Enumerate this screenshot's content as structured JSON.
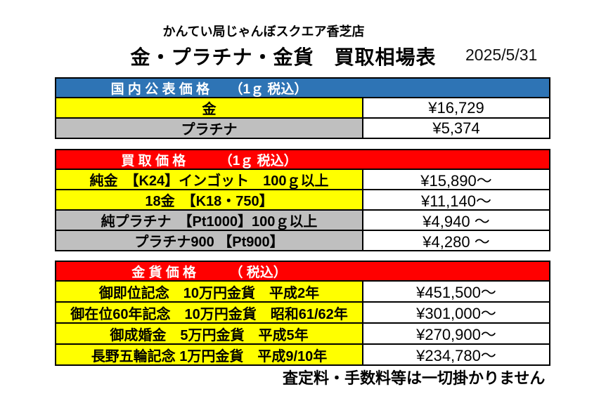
{
  "header": {
    "store_name": "かんてい局じゃんぼスクエア香芝店",
    "title": "金・プラチナ・金貨　買取相場表",
    "date": "2025/5/31"
  },
  "colors": {
    "blue": "#2E74B5",
    "red": "#FF0000",
    "yellow": "#FFFF00",
    "gray": "#BFBFBF",
    "white": "#FFFFFF",
    "border": "#000000"
  },
  "tables": [
    {
      "name": "国内公表価格",
      "header": "国 内 公 表 価 格　　（1ｇ 税込）",
      "header_color": "blue",
      "rows": [
        {
          "label": "金",
          "price": "¥16,729",
          "bg": "yellow"
        },
        {
          "label": "プラチナ",
          "price": "¥5,374",
          "bg": "gray"
        }
      ]
    },
    {
      "name": "買取価格",
      "header": "買 取 価 格　　　（1ｇ 税込）",
      "header_color": "red",
      "rows": [
        {
          "label": "純金　【K24】インゴット　100ｇ以上",
          "price": "¥15,890～",
          "bg": "yellow"
        },
        {
          "label": "18金　【K18・750】",
          "price": "¥11,140～",
          "bg": "yellow"
        },
        {
          "label": "純プラチナ　【Pt1000】100ｇ以上",
          "price": "¥4,940 ～",
          "bg": "gray"
        },
        {
          "label": "プラチナ900 【Pt900】",
          "price": "¥4,280 ～",
          "bg": "gray"
        }
      ]
    },
    {
      "name": "金貨価格",
      "header": "金 貨 価 格　　　（ 税込）",
      "header_color": "red",
      "rows": [
        {
          "label": "御即位記念　10万円金貨　平成2年",
          "price": "¥451,500～",
          "bg": "yellow"
        },
        {
          "label": "御在位60年記念　10万円金貨　昭和61/62年",
          "price": "¥301,000～",
          "bg": "yellow"
        },
        {
          "label": "御成婚金　5万円金貨　平成5年",
          "price": "¥270,900～",
          "bg": "yellow"
        },
        {
          "label": "長野五輪記念 1万円金貨　平成9/10年",
          "price": "¥234,780～",
          "bg": "yellow"
        }
      ]
    }
  ],
  "footer": {
    "note": "査定料・手数料等は一切掛かりません"
  }
}
